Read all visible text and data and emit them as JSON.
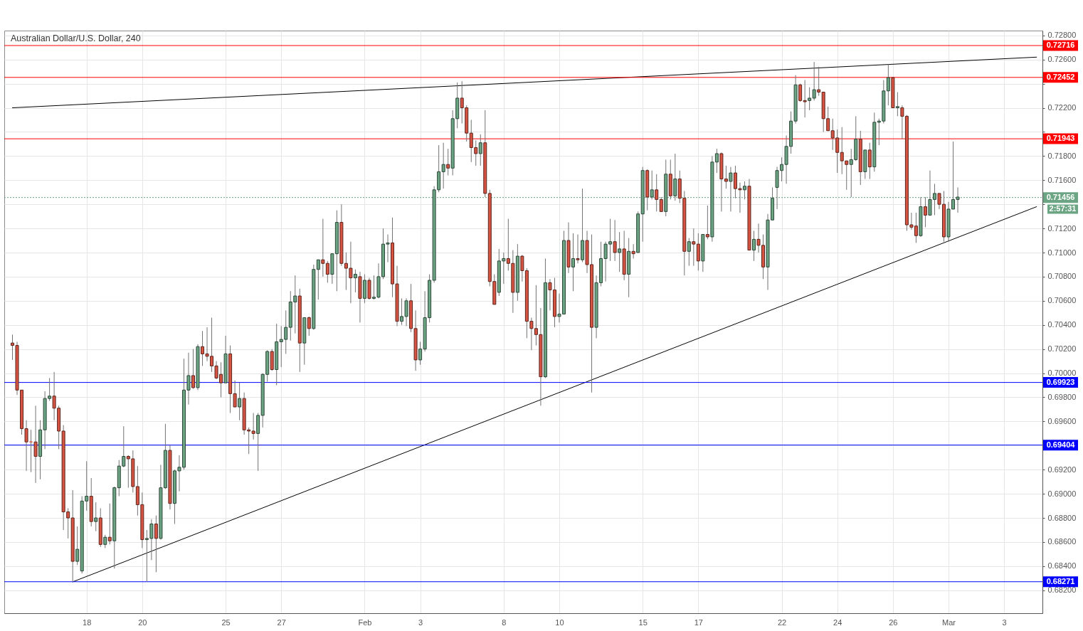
{
  "chart_data": {
    "type": "candlestick",
    "title": "Australian Dollar/U.S. Dollar, 240",
    "categories": [
      null,
      null,
      null,
      null,
      null,
      null,
      null,
      null,
      null,
      null,
      null,
      null,
      null,
      null,
      null,
      null,
      "18",
      null,
      null,
      null,
      null,
      null,
      null,
      null,
      null,
      null,
      null,
      null,
      "20",
      null,
      null,
      null,
      null,
      null,
      null,
      null,
      null,
      null,
      null,
      null,
      null,
      null,
      null,
      null,
      null,
      null,
      "25",
      null,
      null,
      null,
      null,
      null,
      null,
      null,
      null,
      null,
      null,
      null,
      "27",
      null,
      null,
      null,
      null,
      null,
      null,
      null,
      null,
      null,
      null,
      null,
      null,
      null,
      null,
      null,
      null,
      null,
      "Feb",
      null,
      null,
      null,
      null,
      null,
      null,
      null,
      null,
      null,
      null,
      null,
      "3",
      null,
      null,
      null,
      null,
      null,
      null,
      null,
      null,
      null,
      null,
      null,
      null,
      null,
      null,
      null,
      null,
      null,
      "8",
      null,
      null,
      null,
      null,
      null,
      null,
      null,
      null,
      null,
      null,
      null,
      "10",
      null,
      null,
      null,
      null,
      null,
      null,
      null,
      null,
      null,
      null,
      null,
      null,
      null,
      null,
      null,
      null,
      null,
      "15",
      null,
      null,
      null,
      null,
      null,
      null,
      null,
      null,
      null,
      null,
      null,
      "17",
      null,
      null,
      null,
      null,
      null,
      null,
      null,
      null,
      null,
      null,
      null,
      null,
      null,
      null,
      null,
      null,
      null,
      "22",
      null,
      null,
      null,
      null,
      null,
      null,
      null,
      null,
      null,
      null,
      null,
      "24",
      null,
      null,
      null,
      null,
      null,
      null,
      null,
      null,
      null,
      null,
      null,
      "26",
      null,
      null,
      null,
      null,
      null,
      null,
      null,
      null,
      null,
      null,
      null,
      "Mar",
      null,
      null,
      null,
      null,
      null,
      null,
      null,
      null,
      null,
      null,
      null,
      "3",
      null,
      null,
      null,
      null,
      null,
      null,
      null
    ],
    "ohlc": [
      [
        0.7025,
        0.7032,
        0.7011,
        0.7023
      ],
      [
        0.7023,
        0.7026,
        0.6982,
        0.6986
      ],
      [
        0.6986,
        0.6986,
        0.6949,
        0.6954
      ],
      [
        0.6954,
        0.6961,
        0.6919,
        0.6943
      ],
      [
        0.6943,
        0.6953,
        0.6918,
        0.6943
      ],
      [
        0.6943,
        0.6973,
        0.6909,
        0.6931
      ],
      [
        0.6931,
        0.6961,
        0.6912,
        0.6953
      ],
      [
        0.6953,
        0.6985,
        0.6937,
        0.6979
      ],
      [
        0.6979,
        0.6996,
        0.6977,
        0.6981
      ],
      [
        0.6981,
        0.7001,
        0.6961,
        0.6971
      ],
      [
        0.6971,
        0.6973,
        0.6937,
        0.6952
      ],
      [
        0.6952,
        0.6957,
        0.687,
        0.6885
      ],
      [
        0.6885,
        0.6888,
        0.6863,
        0.688
      ],
      [
        0.688,
        0.6903,
        0.6827,
        0.6844
      ],
      [
        0.6844,
        0.6873,
        0.6841,
        0.6854
      ],
      [
        0.6836,
        0.6898,
        0.6834,
        0.6894
      ],
      [
        0.6894,
        0.6927,
        0.6886,
        0.6898
      ],
      [
        0.6898,
        0.6913,
        0.6873,
        0.6877
      ],
      [
        0.6877,
        0.6893,
        0.6869,
        0.688
      ],
      [
        0.688,
        0.6888,
        0.6856,
        0.6858
      ],
      [
        0.6858,
        0.6866,
        0.6855,
        0.6864
      ],
      [
        0.6864,
        0.6892,
        0.6858,
        0.6861
      ],
      [
        0.6861,
        0.6906,
        0.6838,
        0.6905
      ],
      [
        0.6905,
        0.6928,
        0.6898,
        0.6923
      ],
      [
        0.6923,
        0.6956,
        0.6922,
        0.6931
      ],
      [
        0.6931,
        0.6932,
        0.6905,
        0.6929
      ],
      [
        0.6929,
        0.6936,
        0.6901,
        0.6906
      ],
      [
        0.6906,
        0.6923,
        0.6882,
        0.6891
      ],
      [
        0.6891,
        0.6901,
        0.6855,
        0.6862
      ],
      [
        0.6862,
        0.687,
        0.6827,
        0.6863
      ],
      [
        0.6863,
        0.6879,
        0.6845,
        0.6875
      ],
      [
        0.6875,
        0.6882,
        0.6835,
        0.6863
      ],
      [
        0.6863,
        0.6924,
        0.6862,
        0.6905
      ],
      [
        0.6905,
        0.6958,
        0.6904,
        0.6936
      ],
      [
        0.6936,
        0.694,
        0.6887,
        0.6892
      ],
      [
        0.6892,
        0.692,
        0.6875,
        0.6919
      ],
      [
        0.6919,
        0.6932,
        0.6902,
        0.6922
      ],
      [
        0.6922,
        0.7012,
        0.692,
        0.6986
      ],
      [
        0.6986,
        0.7017,
        0.6974,
        0.6998
      ],
      [
        0.6998,
        0.702,
        0.6987,
        0.6988
      ],
      [
        0.6988,
        0.7024,
        0.6986,
        0.7022
      ],
      [
        0.7022,
        0.7035,
        0.7006,
        0.7016
      ],
      [
        0.7016,
        0.7038,
        0.701,
        0.7014
      ],
      [
        0.7014,
        0.7046,
        0.7001,
        0.7006
      ],
      [
        0.7006,
        0.701,
        0.6995,
        0.6996
      ],
      [
        0.6999,
        0.7009,
        0.698,
        0.6992
      ],
      [
        0.6992,
        0.7031,
        0.6992,
        0.7016
      ],
      [
        0.7016,
        0.7023,
        0.6967,
        0.6983
      ],
      [
        0.6983,
        0.6994,
        0.6972,
        0.6972
      ],
      [
        0.6972,
        0.6992,
        0.6961,
        0.6979
      ],
      [
        0.6979,
        0.6984,
        0.6949,
        0.6953
      ],
      [
        0.6953,
        0.6955,
        0.6933,
        0.6952
      ],
      [
        0.6952,
        0.6967,
        0.6945,
        0.695
      ],
      [
        0.695,
        0.6967,
        0.6919,
        0.6965
      ],
      [
        0.6965,
        0.7,
        0.6955,
        0.6999
      ],
      [
        0.6999,
        0.7019,
        0.6993,
        0.7018
      ],
      [
        0.7018,
        0.702,
        0.7002,
        0.7003
      ],
      [
        0.7003,
        0.7041,
        0.699,
        0.7026
      ],
      [
        0.7026,
        0.7039,
        0.7005,
        0.7028
      ],
      [
        0.7028,
        0.7052,
        0.7016,
        0.7038
      ],
      [
        0.7038,
        0.7068,
        0.7027,
        0.7059
      ],
      [
        0.7059,
        0.7081,
        0.7033,
        0.7064
      ],
      [
        0.7064,
        0.707,
        0.7001,
        0.7025
      ],
      [
        0.7025,
        0.7046,
        0.7007,
        0.7046
      ],
      [
        0.7046,
        0.7047,
        0.7031,
        0.7037
      ],
      [
        0.7037,
        0.709,
        0.7036,
        0.7086
      ],
      [
        0.7086,
        0.7094,
        0.7061,
        0.7094
      ],
      [
        0.7094,
        0.7128,
        0.708,
        0.7091
      ],
      [
        0.7091,
        0.7093,
        0.7075,
        0.7082
      ],
      [
        0.7082,
        0.7099,
        0.7074,
        0.7099
      ],
      [
        0.7099,
        0.7135,
        0.7068,
        0.7125
      ],
      [
        0.7125,
        0.714,
        0.7089,
        0.7091
      ],
      [
        0.7091,
        0.71,
        0.7069,
        0.7087
      ],
      [
        0.7087,
        0.7109,
        0.7058,
        0.7079
      ],
      [
        0.7079,
        0.7086,
        0.7067,
        0.7082
      ],
      [
        0.708,
        0.7084,
        0.7042,
        0.7062
      ],
      [
        0.7062,
        0.7082,
        0.7058,
        0.7077
      ],
      [
        0.7077,
        0.7079,
        0.7061,
        0.7062
      ],
      [
        0.7062,
        0.7081,
        0.7061,
        0.7063
      ],
      [
        0.7063,
        0.7091,
        0.7062,
        0.708
      ],
      [
        0.708,
        0.712,
        0.7078,
        0.7107
      ],
      [
        0.7107,
        0.7115,
        0.7092,
        0.7108
      ],
      [
        0.7108,
        0.7129,
        0.7063,
        0.7074
      ],
      [
        0.7074,
        0.7089,
        0.7039,
        0.7043
      ],
      [
        0.7043,
        0.7062,
        0.704,
        0.7047
      ],
      [
        0.7047,
        0.7062,
        0.7039,
        0.706
      ],
      [
        0.706,
        0.7074,
        0.7034,
        0.7037
      ],
      [
        0.7037,
        0.7052,
        0.7002,
        0.7011
      ],
      [
        0.7011,
        0.7026,
        0.7007,
        0.702
      ],
      [
        0.702,
        0.7068,
        0.7018,
        0.7046
      ],
      [
        0.7046,
        0.7082,
        0.7042,
        0.7077
      ],
      [
        0.7077,
        0.7155,
        0.7075,
        0.7152
      ],
      [
        0.7152,
        0.7189,
        0.715,
        0.7167
      ],
      [
        0.7167,
        0.7191,
        0.7153,
        0.7173
      ],
      [
        0.7173,
        0.7186,
        0.7164,
        0.717
      ],
      [
        0.717,
        0.7218,
        0.7164,
        0.7211
      ],
      [
        0.7211,
        0.7241,
        0.7203,
        0.7228
      ],
      [
        0.7228,
        0.7242,
        0.7207,
        0.722
      ],
      [
        0.722,
        0.7222,
        0.7192,
        0.7199
      ],
      [
        0.7199,
        0.721,
        0.7175,
        0.7187
      ],
      [
        0.7187,
        0.7193,
        0.7172,
        0.7182
      ],
      [
        0.7182,
        0.7198,
        0.7172,
        0.7191
      ],
      [
        0.7191,
        0.7218,
        0.7146,
        0.7149
      ],
      [
        0.7149,
        0.7152,
        0.7072,
        0.7076
      ],
      [
        0.7076,
        0.7082,
        0.7057,
        0.7057
      ],
      [
        0.7067,
        0.7103,
        0.7064,
        0.7093
      ],
      [
        0.7093,
        0.71,
        0.7074,
        0.7095
      ],
      [
        0.7095,
        0.7128,
        0.7085,
        0.7091
      ],
      [
        0.7091,
        0.7102,
        0.705,
        0.7067
      ],
      [
        0.7067,
        0.7107,
        0.706,
        0.7097
      ],
      [
        0.7097,
        0.7098,
        0.7076,
        0.7085
      ],
      [
        0.7085,
        0.7087,
        0.7029,
        0.7043
      ],
      [
        0.7043,
        0.7046,
        0.7019,
        0.7037
      ],
      [
        0.7037,
        0.7073,
        0.7023,
        0.7032
      ],
      [
        0.7032,
        0.7054,
        0.6973,
        0.6997
      ],
      [
        0.6997,
        0.7095,
        0.6996,
        0.7075
      ],
      [
        0.7075,
        0.7078,
        0.7052,
        0.7069
      ],
      [
        0.7069,
        0.7079,
        0.7038,
        0.7047
      ],
      [
        0.7047,
        0.7066,
        0.7042,
        0.7049
      ],
      [
        0.7049,
        0.7118,
        0.7049,
        0.711
      ],
      [
        0.711,
        0.7125,
        0.7083,
        0.7088
      ],
      [
        0.7088,
        0.7116,
        0.7068,
        0.7095
      ],
      [
        0.7095,
        0.7115,
        0.7091,
        0.7094
      ],
      [
        0.7094,
        0.7153,
        0.7092,
        0.711
      ],
      [
        0.711,
        0.7118,
        0.7083,
        0.709
      ],
      [
        0.709,
        0.7115,
        0.6984,
        0.7038
      ],
      [
        0.7038,
        0.7081,
        0.7029,
        0.7075
      ],
      [
        0.7075,
        0.7109,
        0.7072,
        0.7095
      ],
      [
        0.7095,
        0.7109,
        0.7076,
        0.7107
      ],
      [
        0.7107,
        0.7128,
        0.7093,
        0.7109
      ],
      [
        0.7109,
        0.7127,
        0.7093,
        0.71
      ],
      [
        0.71,
        0.7117,
        0.7084,
        0.7103
      ],
      [
        0.7103,
        0.7118,
        0.7077,
        0.7082
      ],
      [
        0.7082,
        0.7112,
        0.7063,
        0.7101
      ],
      [
        0.7101,
        0.7107,
        0.7095,
        0.7099
      ],
      [
        0.71,
        0.7134,
        0.71,
        0.7132
      ],
      [
        0.7132,
        0.7171,
        0.7109,
        0.7168
      ],
      [
        0.7168,
        0.7169,
        0.7135,
        0.7146
      ],
      [
        0.7146,
        0.7168,
        0.7144,
        0.7152
      ],
      [
        0.7152,
        0.7165,
        0.7134,
        0.7144
      ],
      [
        0.7144,
        0.7146,
        0.7134,
        0.7134
      ],
      [
        0.7134,
        0.7177,
        0.713,
        0.7165
      ],
      [
        0.7165,
        0.7177,
        0.7144,
        0.7147
      ],
      [
        0.7147,
        0.7182,
        0.7143,
        0.7161
      ],
      [
        0.7161,
        0.7168,
        0.7141,
        0.7145
      ],
      [
        0.7145,
        0.7151,
        0.7081,
        0.7101
      ],
      [
        0.7101,
        0.7112,
        0.7089,
        0.7109
      ],
      [
        0.7109,
        0.712,
        0.7089,
        0.7107
      ],
      [
        0.7107,
        0.7116,
        0.7085,
        0.7093
      ],
      [
        0.7093,
        0.7115,
        0.7084,
        0.7115
      ],
      [
        0.7115,
        0.7139,
        0.7111,
        0.7113
      ],
      [
        0.7113,
        0.718,
        0.7109,
        0.7175
      ],
      [
        0.7175,
        0.7186,
        0.7166,
        0.7182
      ],
      [
        0.7182,
        0.7183,
        0.7134,
        0.7161
      ],
      [
        0.7161,
        0.7172,
        0.7153,
        0.7159
      ],
      [
        0.7159,
        0.7171,
        0.7134,
        0.7166
      ],
      [
        0.7166,
        0.7172,
        0.7145,
        0.7153
      ],
      [
        0.7153,
        0.7158,
        0.7133,
        0.7152
      ],
      [
        0.7152,
        0.7159,
        0.7144,
        0.7155
      ],
      [
        0.7155,
        0.7161,
        0.7102,
        0.7102
      ],
      [
        0.7102,
        0.7118,
        0.7093,
        0.7111
      ],
      [
        0.7111,
        0.7124,
        0.71,
        0.7106
      ],
      [
        0.7106,
        0.7115,
        0.7078,
        0.7088
      ],
      [
        0.7088,
        0.7132,
        0.7069,
        0.7127
      ],
      [
        0.7127,
        0.7154,
        0.7127,
        0.7145
      ],
      [
        0.7154,
        0.7171,
        0.7136,
        0.7168
      ],
      [
        0.7168,
        0.7179,
        0.7159,
        0.7173
      ],
      [
        0.7173,
        0.7197,
        0.7157,
        0.7188
      ],
      [
        0.7188,
        0.7217,
        0.7182,
        0.7209
      ],
      [
        0.7209,
        0.7247,
        0.7207,
        0.7239
      ],
      [
        0.7239,
        0.724,
        0.7225,
        0.7226
      ],
      [
        0.7226,
        0.7243,
        0.7212,
        0.7225
      ],
      [
        0.7226,
        0.7237,
        0.7218,
        0.7228
      ],
      [
        0.7228,
        0.7258,
        0.7226,
        0.7235
      ],
      [
        0.7235,
        0.7254,
        0.723,
        0.7233
      ],
      [
        0.7233,
        0.7233,
        0.72,
        0.7211
      ],
      [
        0.7211,
        0.7221,
        0.7201,
        0.7201
      ],
      [
        0.7201,
        0.7211,
        0.7185,
        0.7195
      ],
      [
        0.7195,
        0.7202,
        0.7166,
        0.7183
      ],
      [
        0.7183,
        0.7204,
        0.7165,
        0.7176
      ],
      [
        0.7176,
        0.7176,
        0.7152,
        0.7173
      ],
      [
        0.7173,
        0.7186,
        0.7146,
        0.7177
      ],
      [
        0.7177,
        0.7213,
        0.7176,
        0.7194
      ],
      [
        0.7194,
        0.7201,
        0.7156,
        0.7167
      ],
      [
        0.7167,
        0.7185,
        0.7161,
        0.7185
      ],
      [
        0.7185,
        0.7191,
        0.7161,
        0.7171
      ],
      [
        0.7171,
        0.7216,
        0.7167,
        0.7208
      ],
      [
        0.7208,
        0.7211,
        0.7189,
        0.7209
      ],
      [
        0.7209,
        0.7243,
        0.7207,
        0.7234
      ],
      [
        0.7234,
        0.7256,
        0.7222,
        0.7245
      ],
      [
        0.7245,
        0.7245,
        0.722,
        0.722
      ],
      [
        0.722,
        0.7233,
        0.7213,
        0.7221
      ],
      [
        0.722,
        0.7222,
        0.7194,
        0.7213
      ],
      [
        0.7213,
        0.7214,
        0.7118,
        0.7123
      ],
      [
        0.7123,
        0.7133,
        0.7119,
        0.7121
      ],
      [
        0.7122,
        0.7133,
        0.7108,
        0.7114
      ],
      [
        0.7114,
        0.7146,
        0.7113,
        0.7138
      ],
      [
        0.7138,
        0.7146,
        0.7121,
        0.7131
      ],
      [
        0.7131,
        0.7168,
        0.7131,
        0.7144
      ],
      [
        0.7144,
        0.7157,
        0.7131,
        0.7149
      ],
      [
        0.7149,
        0.7149,
        0.7136,
        0.714
      ],
      [
        0.714,
        0.7151,
        0.7109,
        0.7113
      ],
      [
        0.7113,
        0.7142,
        0.7109,
        0.7136
      ],
      [
        0.7136,
        0.7192,
        0.7136,
        0.7144
      ],
      [
        0.7144,
        0.7154,
        0.7133,
        0.7146
      ],
      null,
      null,
      null,
      null,
      null,
      null,
      null,
      null,
      null,
      null,
      null,
      null,
      null,
      null,
      null,
      null,
      null
    ],
    "colors": [
      "#d75442",
      "#d75442",
      "#d75442",
      "#d75442",
      "#d75442",
      "#d75442",
      "#6ba583",
      "#6ba583",
      "#6ba583",
      "#d75442",
      "#d75442",
      "#d75442",
      "#d75442",
      "#d75442",
      "#6ba583",
      "#6ba583",
      "#6ba583",
      "#d75442",
      "#6ba583",
      "#d75442",
      "#6ba583",
      "#d75442",
      "#6ba583",
      "#6ba583",
      "#6ba583",
      "#d75442",
      "#d75442",
      "#d75442",
      "#d75442",
      "#6ba583",
      "#6ba583",
      "#d75442",
      "#6ba583",
      "#6ba583",
      "#d75442",
      "#6ba583",
      "#6ba583",
      "#6ba583",
      "#6ba583",
      "#d75442",
      "#6ba583",
      "#d75442",
      "#d75442",
      "#d75442",
      "#d75442",
      "#d75442",
      "#6ba583",
      "#d75442",
      "#d75442",
      "#6ba583",
      "#d75442",
      "#d75442",
      "#d75442",
      "#6ba583",
      "#6ba583",
      "#6ba583",
      "#d75442",
      "#6ba583",
      "#6ba583",
      "#6ba583",
      "#6ba583",
      "#6ba583",
      "#d75442",
      "#6ba583",
      "#d75442",
      "#6ba583",
      "#6ba583",
      "#d75442",
      "#d75442",
      "#6ba583",
      "#6ba583",
      "#d75442",
      "#d75442",
      "#d75442",
      "#6ba583",
      "#d75442",
      "#6ba583",
      "#d75442",
      "#6ba583",
      "#6ba583",
      "#6ba583",
      "#6ba583",
      "#d75442",
      "#d75442",
      "#6ba583",
      "#6ba583",
      "#d75442",
      "#d75442",
      "#6ba583",
      "#6ba583",
      "#6ba583",
      "#6ba583",
      "#6ba583",
      "#6ba583",
      "#d75442",
      "#6ba583",
      "#6ba583",
      "#d75442",
      "#d75442",
      "#d75442",
      "#d75442",
      "#6ba583",
      "#d75442",
      "#d75442",
      "#d75442",
      "#6ba583",
      "#6ba583",
      "#d75442",
      "#d75442",
      "#6ba583",
      "#d75442",
      "#d75442",
      "#d75442",
      "#d75442",
      "#d75442",
      "#6ba583",
      "#d75442",
      "#d75442",
      "#6ba583",
      "#6ba583",
      "#d75442",
      "#6ba583",
      "#d75442",
      "#6ba583",
      "#d75442",
      "#d75442",
      "#6ba583",
      "#6ba583",
      "#6ba583",
      "#6ba583",
      "#d75442",
      "#6ba583",
      "#d75442",
      "#6ba583",
      "#d75442",
      "#6ba583",
      "#6ba583",
      "#d75442",
      "#6ba583",
      "#d75442",
      "#d75442",
      "#6ba583",
      "#d75442",
      "#6ba583",
      "#d75442",
      "#d75442",
      "#6ba583",
      "#d75442",
      "#d75442",
      "#6ba583",
      "#d75442",
      "#6ba583",
      "#6ba583",
      "#d75442",
      "#d75442",
      "#6ba583",
      "#d75442",
      "#d75442",
      "#6ba583",
      "#d75442",
      "#6ba583",
      "#d75442",
      "#d75442",
      "#6ba583",
      "#6ba583",
      "#6ba583",
      "#6ba583",
      "#6ba583",
      "#6ba583",
      "#6ba583",
      "#d75442",
      "#d75442",
      "#6ba583",
      "#6ba583",
      "#d75442",
      "#d75442",
      "#d75442",
      "#d75442",
      "#d75442",
      "#d75442",
      "#d75442",
      "#6ba583",
      "#6ba583",
      "#d75442",
      "#6ba583",
      "#d75442",
      "#6ba583",
      "#6ba583",
      "#6ba583",
      "#6ba583",
      "#d75442",
      "#6ba583",
      "#d75442",
      "#d75442",
      "#d75442",
      "#d75442",
      "#6ba583",
      "#d75442",
      "#6ba583",
      "#6ba583",
      "#d75442",
      "#d75442",
      "#6ba583",
      "#6ba583",
      "#6ba583",
      null,
      null,
      null,
      null,
      null,
      null,
      null,
      null,
      null,
      null,
      null,
      null,
      null,
      null,
      null,
      null,
      null
    ],
    "series": [
      {
        "type": "line",
        "color": "#000000",
        "values": [
          0.722,
          null,
          null,
          null,
          null,
          null,
          null,
          null,
          null,
          null,
          null,
          null,
          null,
          null,
          null,
          null,
          null,
          null,
          null,
          null,
          null,
          null,
          null,
          null,
          null,
          null,
          null,
          null,
          null,
          null,
          null,
          null,
          null,
          null,
          null,
          null,
          null,
          null,
          null,
          null,
          null,
          null,
          null,
          null,
          null,
          null,
          null,
          null,
          null,
          null,
          null,
          null,
          null,
          null,
          null,
          null,
          null,
          null,
          null,
          null,
          null,
          null,
          null,
          null,
          null,
          null,
          null,
          null,
          null,
          null,
          null,
          null,
          null,
          null,
          null,
          null,
          null,
          null,
          null,
          null,
          null,
          null,
          null,
          null,
          null,
          null,
          null,
          null,
          null,
          null,
          null,
          null,
          null,
          null,
          null,
          null,
          null,
          null,
          null,
          null,
          null,
          null,
          null,
          null,
          null,
          null,
          null,
          null,
          null,
          null,
          null,
          null,
          null,
          null,
          null,
          null,
          null,
          null,
          null,
          null,
          null,
          null,
          null,
          null,
          null,
          null,
          null,
          null,
          null,
          null,
          null,
          null,
          null,
          null,
          null,
          null,
          null,
          null,
          null,
          null,
          null,
          null,
          null,
          null,
          null,
          null,
          null,
          null,
          null,
          null,
          null,
          null,
          null,
          null,
          null,
          null,
          null,
          null,
          null,
          null,
          null,
          null,
          null,
          null,
          null,
          null,
          null,
          null,
          null,
          null,
          null,
          null,
          null,
          null,
          null,
          null,
          null,
          null,
          null,
          null,
          null,
          null,
          null,
          null,
          null,
          null,
          null,
          null,
          null,
          null,
          null,
          null,
          null,
          null,
          null,
          null,
          null,
          null,
          null,
          null,
          null,
          null,
          null,
          null,
          null,
          null,
          null,
          null,
          null,
          null,
          null,
          null,
          null,
          null,
          null,
          null,
          null,
          null,
          null,
          null,
          null,
          0.7262
        ]
      },
      {
        "type": "line",
        "color": "#000000",
        "values": [
          null,
          null,
          null,
          null,
          null,
          null,
          null,
          null,
          null,
          null,
          null,
          null,
          null,
          0.6827,
          null,
          null,
          null,
          null,
          null,
          null,
          null,
          null,
          null,
          null,
          null,
          null,
          null,
          null,
          null,
          null,
          null,
          null,
          null,
          null,
          null,
          null,
          null,
          null,
          null,
          null,
          null,
          null,
          null,
          null,
          null,
          null,
          null,
          null,
          null,
          null,
          null,
          null,
          null,
          null,
          null,
          null,
          null,
          null,
          null,
          null,
          null,
          null,
          null,
          null,
          null,
          null,
          null,
          null,
          null,
          null,
          null,
          null,
          null,
          null,
          null,
          null,
          null,
          null,
          null,
          null,
          null,
          null,
          null,
          null,
          null,
          null,
          null,
          null,
          null,
          null,
          null,
          null,
          null,
          null,
          null,
          null,
          null,
          null,
          null,
          null,
          null,
          null,
          null,
          null,
          null,
          null,
          null,
          null,
          null,
          null,
          null,
          null,
          null,
          null,
          null,
          null,
          null,
          null,
          null,
          null,
          null,
          null,
          null,
          null,
          null,
          null,
          null,
          null,
          null,
          null,
          null,
          null,
          null,
          null,
          null,
          null,
          null,
          null,
          null,
          null,
          null,
          null,
          null,
          null,
          null,
          null,
          null,
          null,
          null,
          null,
          null,
          null,
          null,
          null,
          null,
          null,
          null,
          null,
          null,
          null,
          null,
          null,
          null,
          null,
          null,
          null,
          null,
          null,
          null,
          null,
          null,
          null,
          null,
          null,
          null,
          null,
          null,
          null,
          null,
          null,
          null,
          null,
          null,
          null,
          null,
          null,
          null,
          null,
          null,
          null,
          null,
          null,
          null,
          null,
          null,
          null,
          null,
          null,
          null,
          null,
          null,
          null,
          null,
          null,
          null,
          null,
          null,
          null,
          null,
          null,
          null,
          null,
          null,
          null,
          null,
          null,
          null,
          null,
          null,
          null,
          null,
          0.7138
        ]
      }
    ],
    "ylim": [
      0.6801,
      0.7284
    ],
    "yticks": [
      {
        "value": 0.682,
        "label": "0.68200"
      },
      {
        "value": 0.684,
        "label": "0.68400"
      },
      {
        "value": 0.686,
        "label": "0.68600"
      },
      {
        "value": 0.688,
        "label": "0.68800"
      },
      {
        "value": 0.69,
        "label": "0.69000"
      },
      {
        "value": 0.692,
        "label": "0.69200"
      },
      {
        "value": 0.694,
        "label": null
      },
      {
        "value": 0.696,
        "label": "0.69600"
      },
      {
        "value": 0.698,
        "label": "0.69800"
      },
      {
        "value": 0.7,
        "label": "0.70000"
      },
      {
        "value": 0.702,
        "label": "0.70200"
      },
      {
        "value": 0.704,
        "label": "0.70400"
      },
      {
        "value": 0.706,
        "label": "0.70600"
      },
      {
        "value": 0.708,
        "label": "0.70800"
      },
      {
        "value": 0.71,
        "label": "0.71000"
      },
      {
        "value": 0.712,
        "label": "0.71200"
      },
      {
        "value": 0.714,
        "label": null
      },
      {
        "value": 0.716,
        "label": "0.71600"
      },
      {
        "value": 0.718,
        "label": "0.71800"
      },
      {
        "value": 0.72,
        "label": null
      },
      {
        "value": 0.722,
        "label": "0.72200"
      },
      {
        "value": 0.724,
        "label": null
      },
      {
        "value": 0.726,
        "label": "0.72600"
      },
      {
        "value": 0.728,
        "label": "0.72800"
      }
    ],
    "ref_lines": [
      {
        "axis": "y",
        "value": 0.72716,
        "label": "0.72716",
        "color": "#ff0000"
      },
      {
        "axis": "y",
        "value": 0.72452,
        "label": "0.72452",
        "color": "#ff0000"
      },
      {
        "axis": "y",
        "value": 0.71943,
        "label": "0.71943",
        "color": "#ff0000"
      },
      {
        "axis": "y",
        "value": 0.71456,
        "label": "0.71456",
        "color": "#6ba583",
        "line_style": "dotted"
      },
      {
        "axis": "y",
        "value": 0.69923,
        "label": "0.69923",
        "color": "#0000ff"
      },
      {
        "axis": "y",
        "value": 0.69404,
        "label": "0.69404",
        "color": "#0000ff"
      },
      {
        "axis": "y",
        "value": 0.68271,
        "label": "0.68271",
        "color": "#0000ff"
      }
    ],
    "annotations": [
      "2:57:31"
    ],
    "grid": true
  }
}
